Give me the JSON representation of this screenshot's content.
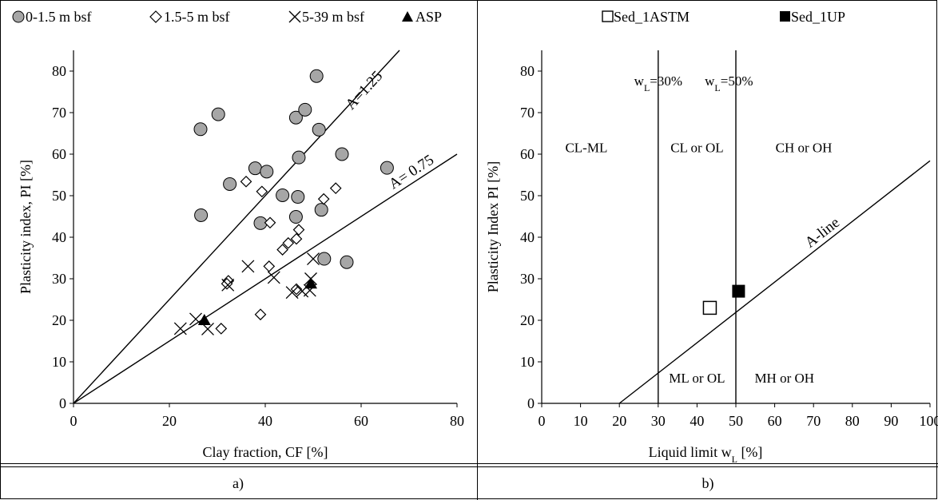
{
  "figure": {
    "caption_a": "a)",
    "caption_b": "b)"
  },
  "chart_data": [
    {
      "type": "scatter",
      "title": "",
      "xlabel": "Clay fraction, CF [%]",
      "ylabel": "Plasticity index, PI [%]",
      "xlim": [
        0,
        80
      ],
      "ylim": [
        0,
        85
      ],
      "xticks": [
        0,
        20,
        40,
        60,
        80
      ],
      "yticks": [
        0,
        10,
        20,
        30,
        40,
        50,
        60,
        70,
        80
      ],
      "grid": false,
      "legend_position": "top",
      "series": [
        {
          "name": "0-1.5 m bsf",
          "marker": "circle-filled",
          "color": "#a6a6a6",
          "points": [
            [
              26.5,
              66
            ],
            [
              30.2,
              69.6
            ],
            [
              26.6,
              45.3
            ],
            [
              32.6,
              52.8
            ],
            [
              37.9,
              56.6
            ],
            [
              40.3,
              55.8
            ],
            [
              39,
              43.4
            ],
            [
              43.6,
              50.1
            ],
            [
              46.4,
              68.8
            ],
            [
              47,
              59.2
            ],
            [
              48.3,
              70.7
            ],
            [
              50.7,
              78.8
            ],
            [
              51.2,
              65.9
            ],
            [
              46.8,
              49.7
            ],
            [
              46.4,
              44.9
            ],
            [
              51.7,
              46.6
            ],
            [
              52.3,
              34.8
            ],
            [
              56,
              60
            ],
            [
              57,
              34
            ],
            [
              65.4,
              56.7
            ]
          ]
        },
        {
          "name": "1.5-5 m bsf",
          "marker": "diamond-open",
          "color": "#000000",
          "points": [
            [
              36,
              53.4
            ],
            [
              39.3,
              51
            ],
            [
              41,
              43.5
            ],
            [
              43.6,
              37
            ],
            [
              44.8,
              38.6
            ],
            [
              46.5,
              39.6
            ],
            [
              47,
              41.8
            ],
            [
              52.2,
              49.2
            ],
            [
              54.7,
              51.8
            ],
            [
              40.8,
              33
            ],
            [
              32.3,
              29.5
            ],
            [
              32,
              28.8
            ],
            [
              30.8,
              18
            ],
            [
              39,
              21.4
            ],
            [
              46.5,
              27.5
            ]
          ]
        },
        {
          "name": "5-39 m bsf",
          "marker": "cross",
          "color": "#000000",
          "points": [
            [
              22.3,
              18
            ],
            [
              25.5,
              20.3
            ],
            [
              28,
              17.9
            ],
            [
              32.2,
              28.5
            ],
            [
              36.4,
              33
            ],
            [
              41.8,
              30.3
            ],
            [
              45.6,
              26.7
            ],
            [
              47.7,
              27
            ],
            [
              49.3,
              27.2
            ],
            [
              50,
              34.8
            ],
            [
              49.5,
              30
            ]
          ]
        },
        {
          "name": "ASP",
          "marker": "triangle-filled",
          "color": "#000000",
          "points": [
            [
              27.3,
              20
            ],
            [
              49.5,
              28.8
            ]
          ]
        }
      ],
      "reference_lines": [
        {
          "label": "A=1.25",
          "slope": 1.25
        },
        {
          "label": "A= 0.75",
          "slope": 0.75
        }
      ]
    },
    {
      "type": "scatter",
      "title": "",
      "xlabel": "Liquid limit w",
      "xlabel_sub": "L",
      "xlabel_suffix": " [%]",
      "ylabel": "Plasticity Index PI [%]",
      "xlim": [
        0,
        100
      ],
      "ylim": [
        0,
        85
      ],
      "xticks": [
        0,
        10,
        20,
        30,
        40,
        50,
        60,
        70,
        80,
        90,
        100
      ],
      "yticks": [
        0,
        10,
        20,
        30,
        40,
        50,
        60,
        70,
        80
      ],
      "grid": false,
      "legend_position": "top",
      "series": [
        {
          "name": "Sed_1ASTM",
          "marker": "square-open",
          "color": "#000000",
          "points": [
            [
              43.3,
              23
            ]
          ]
        },
        {
          "name": "Sed_1UP",
          "marker": "square-filled",
          "color": "#000000",
          "points": [
            [
              50.7,
              27
            ]
          ]
        }
      ],
      "a_line": {
        "label": "A-line",
        "points": [
          [
            20,
            0
          ],
          [
            100,
            58.4
          ]
        ]
      },
      "vertical_lines": [
        {
          "x": 30,
          "label_prefix": "w",
          "label_sub": "L",
          "label_suffix": "=30%"
        },
        {
          "x": 50,
          "label_prefix": "w",
          "label_sub": "L",
          "label_suffix": "=50%"
        }
      ],
      "zone_labels": [
        "CL-ML",
        "CL or OL",
        "CH or OH",
        "ML or OL",
        "MH or OH"
      ]
    }
  ]
}
